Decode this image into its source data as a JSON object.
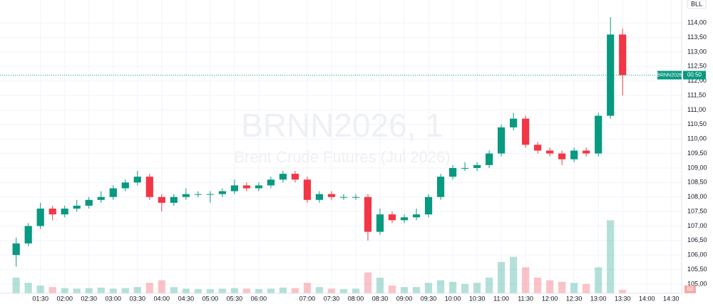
{
  "chart_data": {
    "type": "candlestick",
    "symbol_button": "BLL",
    "watermark_title": "BRNN2026, 1",
    "watermark_subtitle": "Brent Crude Futures (Jul 2026)",
    "last_price_label": "BRNN2026",
    "countdown": "00:50",
    "x": [
      60,
      75,
      90,
      105,
      120,
      135,
      150,
      165,
      180,
      195,
      210,
      225,
      240,
      255,
      270,
      285,
      300,
      315,
      330,
      345,
      360,
      375,
      390,
      405,
      420,
      435,
      450,
      465,
      480,
      495,
      510,
      525,
      540,
      555,
      570,
      585,
      600,
      615,
      630,
      645,
      660,
      675,
      690,
      705,
      720,
      735,
      750,
      765,
      780,
      795,
      810
    ],
    "open": [
      106.0,
      106.4,
      107.0,
      107.6,
      107.4,
      107.6,
      107.7,
      107.9,
      108.0,
      108.3,
      108.5,
      108.7,
      108.0,
      107.8,
      108.0,
      108.1,
      108.1,
      108.1,
      108.2,
      108.4,
      108.3,
      108.4,
      108.6,
      108.8,
      108.6,
      107.9,
      108.1,
      108.0,
      108.0,
      108.0,
      106.8,
      107.4,
      107.2,
      107.3,
      107.4,
      108.0,
      108.7,
      109.0,
      109.0,
      109.1,
      109.5,
      110.4,
      110.7,
      109.8,
      109.6,
      109.5,
      109.3,
      109.6,
      109.5,
      110.8,
      113.6
    ],
    "high": [
      106.6,
      107.1,
      107.8,
      107.7,
      107.7,
      107.9,
      108.0,
      108.2,
      108.4,
      108.6,
      108.9,
      108.8,
      108.1,
      108.1,
      108.3,
      108.2,
      108.2,
      108.3,
      108.6,
      108.5,
      108.5,
      108.7,
      108.9,
      108.9,
      108.7,
      108.2,
      108.2,
      108.1,
      108.1,
      108.1,
      107.6,
      107.5,
      107.4,
      107.6,
      108.1,
      108.8,
      109.1,
      109.2,
      109.2,
      109.6,
      110.5,
      110.9,
      110.8,
      109.9,
      109.7,
      109.6,
      109.7,
      109.7,
      110.9,
      114.2,
      113.8
    ],
    "low": [
      105.6,
      106.3,
      106.9,
      107.2,
      107.3,
      107.5,
      107.6,
      107.8,
      107.9,
      108.2,
      108.4,
      107.9,
      107.5,
      107.7,
      107.9,
      108.0,
      107.8,
      108.0,
      108.1,
      108.2,
      108.2,
      108.3,
      108.5,
      108.5,
      107.8,
      107.8,
      107.9,
      107.9,
      107.9,
      106.5,
      106.7,
      107.1,
      107.1,
      107.2,
      107.3,
      107.9,
      108.6,
      108.9,
      108.9,
      109.0,
      109.4,
      110.3,
      109.7,
      109.5,
      109.4,
      109.1,
      109.2,
      109.4,
      109.4,
      110.7,
      111.5
    ],
    "close": [
      106.4,
      107.0,
      107.6,
      107.4,
      107.6,
      107.7,
      107.9,
      108.0,
      108.3,
      108.5,
      108.7,
      108.0,
      107.8,
      108.0,
      108.1,
      108.1,
      108.1,
      108.2,
      108.4,
      108.3,
      108.4,
      108.6,
      108.8,
      108.6,
      107.9,
      108.1,
      108.0,
      108.0,
      108.0,
      106.8,
      107.4,
      107.2,
      107.3,
      107.4,
      108.0,
      108.7,
      109.0,
      109.0,
      109.1,
      109.5,
      110.4,
      110.7,
      109.8,
      109.6,
      109.5,
      109.3,
      109.6,
      109.5,
      110.8,
      113.6,
      112.2
    ],
    "volume": [
      300,
      200,
      150,
      120,
      100,
      90,
      100,
      110,
      90,
      100,
      120,
      200,
      250,
      120,
      90,
      80,
      80,
      90,
      100,
      90,
      80,
      90,
      110,
      100,
      200,
      120,
      90,
      80,
      90,
      400,
      300,
      150,
      120,
      120,
      200,
      250,
      220,
      180,
      200,
      300,
      600,
      700,
      500,
      300,
      250,
      220,
      200,
      180,
      500,
      1400,
      66
    ],
    "volume_lim": [
      0,
      1500
    ],
    "up_color": "#089981",
    "down_color": "#f23645",
    "grid": true,
    "xlim": [
      40,
      883
    ],
    "ylim": [
      104.68,
      114.79
    ],
    "yticks": [
      {
        "value": 105,
        "label": "105,00"
      },
      {
        "value": 105.5,
        "label": "105,50"
      },
      {
        "value": 106,
        "label": "106,00"
      },
      {
        "value": 106.5,
        "label": "106,50"
      },
      {
        "value": 107,
        "label": "107,00"
      },
      {
        "value": 107.5,
        "label": "107,50"
      },
      {
        "value": 108,
        "label": "108,00"
      },
      {
        "value": 108.5,
        "label": "108,50"
      },
      {
        "value": 109,
        "label": "109,00"
      },
      {
        "value": 109.5,
        "label": "109,50"
      },
      {
        "value": 110,
        "label": "110,00"
      },
      {
        "value": 110.5,
        "label": "110,50"
      },
      {
        "value": 111,
        "label": "111,00"
      },
      {
        "value": 111.5,
        "label": "111,50"
      },
      {
        "value": 112,
        "label": "112,00"
      },
      {
        "value": 112.5,
        "label": "112,50"
      },
      {
        "value": 113,
        "label": "113,00"
      },
      {
        "value": 113.5,
        "label": "113,50"
      },
      {
        "value": 114,
        "label": "114,00"
      }
    ],
    "xticks": [
      {
        "value": 90,
        "label": "01:30"
      },
      {
        "value": 120,
        "label": "02:00"
      },
      {
        "value": 150,
        "label": "02:30"
      },
      {
        "value": 180,
        "label": "03:00"
      },
      {
        "value": 210,
        "label": "03:30"
      },
      {
        "value": 240,
        "label": "04:00"
      },
      {
        "value": 270,
        "label": "04:30"
      },
      {
        "value": 300,
        "label": "05:00"
      },
      {
        "value": 330,
        "label": "05:30"
      },
      {
        "value": 360,
        "label": "06:00"
      },
      {
        "value": 420,
        "label": "07:00"
      },
      {
        "value": 450,
        "label": "07:30"
      },
      {
        "value": 480,
        "label": "08:00"
      },
      {
        "value": 510,
        "label": "08:30"
      },
      {
        "value": 540,
        "label": "09:00"
      },
      {
        "value": 570,
        "label": "09:30"
      },
      {
        "value": 600,
        "label": "10:00"
      },
      {
        "value": 630,
        "label": "10:30"
      },
      {
        "value": 660,
        "label": "11:00"
      },
      {
        "value": 690,
        "label": "11:30"
      },
      {
        "value": 720,
        "label": "12:00"
      },
      {
        "value": 750,
        "label": "12:30"
      },
      {
        "value": 780,
        "label": "13:00"
      },
      {
        "value": 810,
        "label": "13:30"
      },
      {
        "value": 840,
        "label": "14:00"
      },
      {
        "value": 870,
        "label": "14:30"
      }
    ]
  }
}
